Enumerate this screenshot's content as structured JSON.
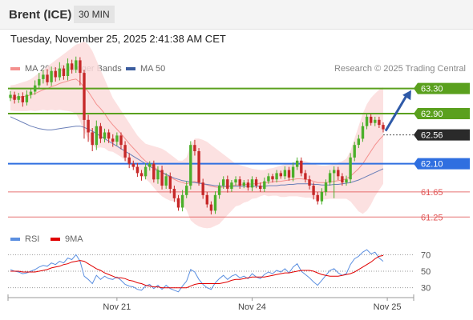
{
  "header": {
    "title": "Brent (ICE)",
    "timeframe": "30 MIN"
  },
  "datetime": "Tuesday, November 25, 2025 2:41:38 AM CET",
  "legend": {
    "ma20": {
      "label": "MA 20 + Bollinger Bands",
      "color": "#f4908e"
    },
    "ma50": {
      "label": "MA 50",
      "color": "#3b5c9e"
    }
  },
  "copyright": "Research © 2025 Trading Central",
  "rsi_legend": {
    "rsi": {
      "label": "RSI",
      "color": "#5b8fe0"
    },
    "ma9": {
      "label": "9MA",
      "color": "#e00000"
    }
  },
  "chart_data": [
    {
      "type": "candlestick",
      "ylim": [
        61.1,
        63.5
      ],
      "x_ticks": [
        {
          "label": "Nov 21",
          "i": 26
        },
        {
          "label": "Nov 24",
          "i": 59
        },
        {
          "label": "Nov 25",
          "i": 92
        }
      ],
      "levels": [
        {
          "value": 63.3,
          "label": "63.30",
          "color": "#5aa01e",
          "style": "tag"
        },
        {
          "value": 62.9,
          "label": "62.90",
          "color": "#5aa01e",
          "style": "tag"
        },
        {
          "value": 62.56,
          "label": "62.56",
          "color": "#2a2a2a",
          "style": "tag"
        },
        {
          "value": 62.1,
          "label": "62.10",
          "color": "#2f6fe0",
          "style": "tag"
        },
        {
          "value": 61.65,
          "label": "61.65",
          "color": "#e05050",
          "style": "text"
        },
        {
          "value": 61.25,
          "label": "61.25",
          "color": "#e05050",
          "style": "text"
        }
      ],
      "closes": [
        63.2,
        63.12,
        63.18,
        63.08,
        63.2,
        63.25,
        63.35,
        63.45,
        63.52,
        63.4,
        63.58,
        63.48,
        63.62,
        63.5,
        63.7,
        63.6,
        63.75,
        63.55,
        62.8,
        62.6,
        62.4,
        62.7,
        62.5,
        62.6,
        62.5,
        62.45,
        62.55,
        62.4,
        62.2,
        62.1,
        62.05,
        61.95,
        61.9,
        62.05,
        62.1,
        61.85,
        62.0,
        61.75,
        61.9,
        61.7,
        61.55,
        61.4,
        61.6,
        61.75,
        62.4,
        62.3,
        61.8,
        61.6,
        61.45,
        61.35,
        61.6,
        61.75,
        61.85,
        61.7,
        61.8,
        61.85,
        61.75,
        61.8,
        61.72,
        61.85,
        61.75,
        61.7,
        61.82,
        61.9,
        61.85,
        61.95,
        61.9,
        62.0,
        61.88,
        62.05,
        62.15,
        61.95,
        61.85,
        61.75,
        61.6,
        61.5,
        61.65,
        61.8,
        61.95,
        62.0,
        61.9,
        61.8,
        61.85,
        62.2,
        62.4,
        62.5,
        62.7,
        62.85,
        62.75,
        62.8,
        62.72,
        62.65
      ],
      "high_pad": [
        0.06,
        0.05,
        0.05,
        0.06,
        0.07,
        0.05,
        0.08,
        0.1,
        0.08,
        0.09,
        0.07,
        0.06,
        0.1,
        0.05,
        0.08,
        0.06,
        0.06,
        0.05,
        0.05,
        0.08,
        0.07,
        0.09,
        0.05,
        0.06,
        0.05,
        0.07,
        0.05,
        0.05,
        0.06,
        0.07,
        0.05,
        0.06,
        0.05,
        0.06,
        0.04,
        0.05,
        0.06,
        0.07,
        0.05,
        0.06,
        0.05,
        0.05,
        0.08,
        0.07,
        0.06,
        0.08,
        0.05,
        0.06,
        0.05,
        0.05,
        0.06,
        0.05,
        0.05,
        0.06,
        0.04,
        0.05,
        0.05,
        0.04,
        0.05,
        0.05,
        0.04,
        0.05,
        0.06,
        0.05,
        0.04,
        0.05,
        0.04,
        0.06,
        0.05,
        0.07,
        0.05,
        0.05,
        0.05,
        0.06,
        0.05,
        0.05,
        0.06,
        0.05,
        0.05,
        0.06,
        0.05,
        0.05,
        0.06,
        0.07,
        0.05,
        0.06,
        0.06,
        0.05,
        0.04,
        0.05,
        0.05,
        0.04
      ],
      "low_pad": [
        0.05,
        0.06,
        0.05,
        0.07,
        0.05,
        0.06,
        0.05,
        0.06,
        0.07,
        0.05,
        0.06,
        0.07,
        0.05,
        0.06,
        0.07,
        0.06,
        0.05,
        0.2,
        0.3,
        0.15,
        0.1,
        0.08,
        0.07,
        0.06,
        0.07,
        0.08,
        0.06,
        0.07,
        0.06,
        0.07,
        0.05,
        0.06,
        0.07,
        0.05,
        0.06,
        0.05,
        0.07,
        0.06,
        0.05,
        0.07,
        0.06,
        0.05,
        0.06,
        0.05,
        0.06,
        0.07,
        0.05,
        0.06,
        0.05,
        0.06,
        0.05,
        0.06,
        0.05,
        0.06,
        0.05,
        0.05,
        0.05,
        0.04,
        0.05,
        0.06,
        0.04,
        0.05,
        0.05,
        0.04,
        0.05,
        0.05,
        0.04,
        0.05,
        0.05,
        0.06,
        0.05,
        0.05,
        0.05,
        0.06,
        0.07,
        0.05,
        0.05,
        0.06,
        0.05,
        0.4,
        0.06,
        0.05,
        0.05,
        0.06,
        0.06,
        0.05,
        0.05,
        0.05,
        0.04,
        0.05,
        0.05,
        0.05
      ],
      "ma20": [
        63.15,
        63.15,
        63.16,
        63.17,
        63.18,
        63.2,
        63.22,
        63.25,
        63.28,
        63.3,
        63.33,
        63.35,
        63.38,
        63.4,
        63.42,
        63.44,
        63.45,
        63.4,
        63.32,
        63.25,
        63.15,
        63.05,
        62.98,
        62.9,
        62.8,
        62.72,
        62.65,
        62.58,
        62.5,
        62.42,
        62.35,
        62.28,
        62.2,
        62.14,
        62.1,
        62.05,
        62.0,
        61.96,
        61.92,
        61.88,
        61.85,
        61.82,
        61.8,
        61.78,
        61.8,
        61.82,
        61.8,
        61.78,
        61.76,
        61.74,
        61.73,
        61.72,
        61.73,
        61.74,
        61.75,
        61.76,
        61.76,
        61.77,
        61.77,
        61.78,
        61.78,
        61.79,
        61.8,
        61.8,
        61.81,
        61.82,
        61.82,
        61.83,
        61.84,
        61.85,
        61.86,
        61.86,
        61.85,
        61.84,
        61.82,
        61.8,
        61.8,
        61.8,
        61.81,
        61.82,
        61.83,
        61.84,
        61.86,
        61.9,
        61.96,
        62.02,
        62.1,
        62.2,
        62.3,
        62.4,
        62.48,
        62.55
      ],
      "upper_band": [
        63.35,
        63.36,
        63.38,
        63.4,
        63.42,
        63.45,
        63.5,
        63.55,
        63.6,
        63.65,
        63.7,
        63.75,
        63.8,
        63.85,
        63.9,
        63.95,
        64.0,
        64.02,
        64.05,
        64.0,
        63.9,
        63.75,
        63.6,
        63.45,
        63.3,
        63.15,
        63.05,
        62.95,
        62.85,
        62.75,
        62.65,
        62.55,
        62.48,
        62.42,
        62.4,
        62.38,
        62.36,
        62.34,
        62.3,
        62.25,
        62.2,
        62.15,
        62.15,
        62.2,
        62.4,
        62.5,
        62.5,
        62.48,
        62.45,
        62.4,
        62.35,
        62.3,
        62.25,
        62.2,
        62.15,
        62.1,
        62.08,
        62.06,
        62.04,
        62.02,
        62.01,
        62.0,
        62.0,
        62.02,
        62.03,
        62.05,
        62.07,
        62.09,
        62.1,
        62.12,
        62.14,
        62.15,
        62.14,
        62.12,
        62.1,
        62.08,
        62.07,
        62.07,
        62.08,
        62.1,
        62.12,
        62.14,
        62.18,
        62.3,
        62.5,
        62.7,
        62.9,
        63.05,
        63.15,
        63.22,
        63.28,
        63.32
      ],
      "lower_band": [
        62.95,
        62.94,
        62.94,
        62.94,
        62.94,
        62.95,
        62.94,
        62.95,
        62.96,
        62.95,
        62.96,
        62.95,
        62.96,
        62.95,
        62.94,
        62.93,
        62.9,
        62.78,
        62.6,
        62.5,
        62.4,
        62.35,
        62.36,
        62.35,
        62.3,
        62.29,
        62.25,
        62.21,
        62.15,
        62.09,
        62.05,
        62.01,
        61.92,
        61.86,
        61.8,
        61.72,
        61.64,
        61.58,
        61.54,
        61.51,
        61.5,
        61.49,
        61.45,
        61.36,
        61.2,
        61.14,
        61.1,
        61.08,
        61.07,
        61.08,
        61.11,
        61.14,
        61.21,
        61.28,
        61.35,
        61.42,
        61.44,
        61.48,
        61.5,
        61.54,
        61.55,
        61.58,
        61.6,
        61.58,
        61.59,
        61.59,
        61.57,
        61.57,
        61.58,
        61.58,
        61.58,
        61.57,
        61.56,
        61.56,
        61.54,
        61.52,
        61.53,
        61.53,
        61.54,
        61.54,
        61.54,
        61.54,
        61.54,
        61.5,
        61.42,
        61.34,
        61.3,
        61.35,
        61.45,
        61.58,
        61.68,
        61.78
      ],
      "ma50": [
        62.85,
        62.82,
        62.79,
        62.76,
        62.73,
        62.7,
        62.68,
        62.66,
        62.65,
        62.64,
        62.64,
        62.65,
        62.66,
        62.67,
        62.68,
        62.69,
        62.7,
        62.7,
        62.68,
        62.65,
        62.62,
        62.58,
        62.54,
        62.5,
        62.46,
        62.42,
        62.38,
        62.34,
        62.3,
        62.26,
        62.22,
        62.18,
        62.14,
        62.1,
        62.06,
        62.02,
        61.99,
        61.96,
        61.93,
        61.9,
        61.87,
        61.85,
        61.83,
        61.82,
        61.81,
        61.8,
        61.79,
        61.78,
        61.77,
        61.76,
        61.75,
        61.75,
        61.74,
        61.74,
        61.74,
        61.74,
        61.74,
        61.74,
        61.74,
        61.74,
        61.74,
        61.74,
        61.74,
        61.75,
        61.75,
        61.75,
        61.76,
        61.76,
        61.77,
        61.77,
        61.78,
        61.78,
        61.78,
        61.78,
        61.77,
        61.77,
        61.76,
        61.76,
        61.76,
        61.77,
        61.77,
        61.78,
        61.79,
        61.8,
        61.82,
        61.84,
        61.87,
        61.9,
        61.93,
        61.96,
        61.99,
        62.02
      ]
    },
    {
      "type": "line",
      "ylim": [
        20,
        80
      ],
      "y_ticks": [
        70,
        50,
        30
      ],
      "series": [
        {
          "name": "RSI",
          "values": [
            52,
            50,
            49,
            47,
            48,
            50,
            52,
            55,
            57,
            56,
            60,
            58,
            62,
            60,
            66,
            64,
            70,
            62,
            44,
            40,
            35,
            45,
            40,
            44,
            41,
            40,
            43,
            39,
            34,
            32,
            31,
            28,
            27,
            32,
            34,
            29,
            33,
            28,
            33,
            29,
            27,
            25,
            32,
            38,
            52,
            49,
            40,
            34,
            30,
            28,
            36,
            41,
            45,
            40,
            44,
            46,
            42,
            44,
            41,
            47,
            43,
            41,
            46,
            49,
            47,
            51,
            49,
            53,
            48,
            55,
            59,
            50,
            46,
            42,
            37,
            33,
            39,
            45,
            51,
            53,
            48,
            45,
            47,
            58,
            65,
            68,
            73,
            76,
            71,
            73,
            66,
            62
          ]
        },
        {
          "name": "9MA",
          "values": [
            50,
            50,
            50,
            49,
            49,
            49,
            49,
            50,
            51,
            52,
            54,
            55,
            56,
            58,
            59,
            61,
            62,
            63,
            62,
            59,
            56,
            53,
            51,
            48,
            46,
            44,
            42,
            42,
            41,
            39,
            38,
            36,
            35,
            33,
            32,
            31,
            31,
            30,
            30,
            30,
            30,
            30,
            30,
            30,
            32,
            34,
            35,
            35,
            35,
            35,
            35,
            35,
            36,
            37,
            39,
            40,
            40,
            41,
            42,
            43,
            43,
            43,
            43,
            44,
            45,
            46,
            47,
            48,
            48,
            49,
            50,
            51,
            51,
            51,
            50,
            48,
            46,
            45,
            44,
            44,
            44,
            45,
            46,
            47,
            49,
            52,
            55,
            58,
            61,
            65,
            68,
            69
          ]
        }
      ]
    }
  ]
}
